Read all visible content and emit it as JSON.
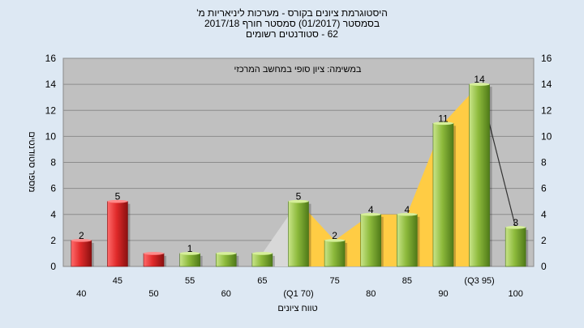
{
  "title_lines": [
    "היסטוגרמת ציונים בקורס - מערכות ליניאריות מ'",
    "בסמסטר (01/2017) סמסטר חורף 2017/18",
    "62 - סטודנטים רשומים"
  ],
  "colors": {
    "background": "#dde8f3",
    "plot_background": "#c0c0c0",
    "red_bar": "#d42a2a",
    "green_bar": "#8dba3c",
    "area_fill": "#ffcc44",
    "gray_area": "#d8d8d8",
    "line": "#333333"
  },
  "chart_data": {
    "type": "bar",
    "inner_label": "במשימה: ציון סופי במחשב המרכזי",
    "xlabel": "טווח ציונים",
    "ylabel": "מספר סטודנטים",
    "ylim": [
      0,
      16
    ],
    "yticks": [
      0,
      2,
      4,
      6,
      8,
      10,
      12,
      14,
      16
    ],
    "grid": true,
    "categories": [
      "40",
      "45",
      "50",
      "55",
      "60",
      "65",
      "(Q1 70)",
      "75",
      "80",
      "85",
      "90",
      "(Q3 95)",
      "100"
    ],
    "values": [
      2,
      5,
      1,
      1,
      1,
      1,
      5,
      2,
      4,
      4,
      11,
      14,
      3
    ],
    "value_labels": [
      "2",
      "5",
      "",
      "1",
      "",
      "",
      "5",
      "2",
      "4",
      "4",
      "11",
      "14",
      "3"
    ],
    "bar_colors": [
      "red",
      "red",
      "red",
      "green",
      "green",
      "green",
      "green",
      "green",
      "green",
      "green",
      "green",
      "green",
      "green"
    ]
  }
}
